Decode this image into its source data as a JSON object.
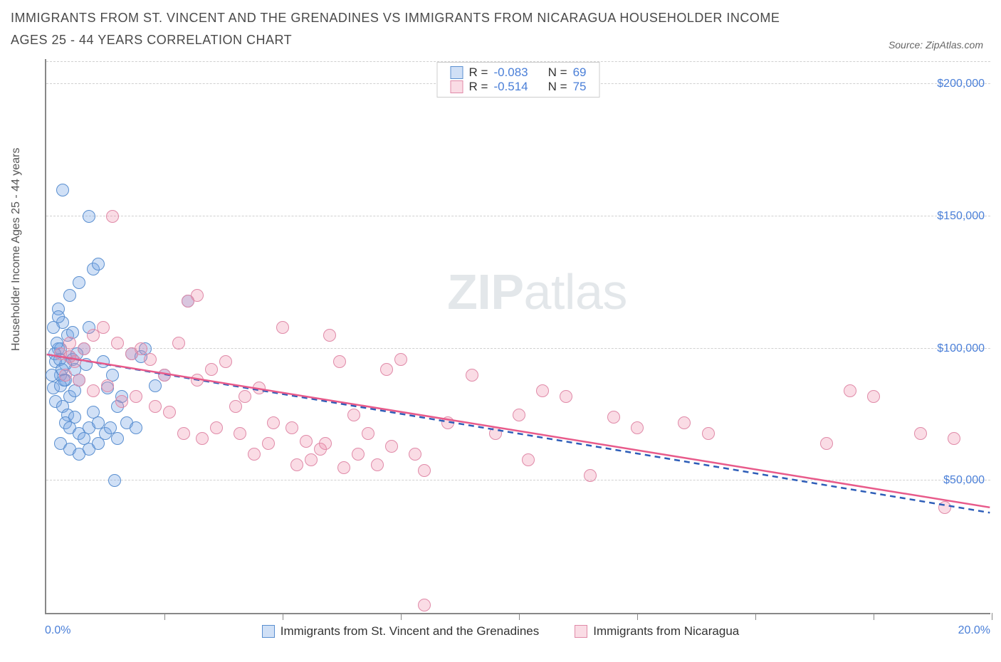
{
  "title": "IMMIGRANTS FROM ST. VINCENT AND THE GRENADINES VS IMMIGRANTS FROM NICARAGUA HOUSEHOLDER INCOME AGES 25 - 44 YEARS CORRELATION CHART",
  "source_label": "Source:",
  "source_name": "ZipAtlas.com",
  "watermark_bold": "ZIP",
  "watermark_light": "atlas",
  "chart": {
    "type": "scatter",
    "background_color": "#ffffff",
    "grid_color": "#d0d0d0",
    "axis_color": "#888888",
    "label_color": "#4a7fd8",
    "label_fontsize": 16,
    "yaxis_title": "Householder Income Ages 25 - 44 years",
    "xlim": [
      0,
      20
    ],
    "ylim": [
      0,
      210000
    ],
    "ygrid": [
      50000,
      100000,
      150000,
      200000
    ],
    "ylabels": [
      "$50,000",
      "$100,000",
      "$150,000",
      "$200,000"
    ],
    "xticks": [
      2.5,
      5,
      7.5,
      10,
      12.5,
      15,
      17.5,
      20
    ],
    "xlab_left": "0.0%",
    "xlab_right": "20.0%",
    "marker_radius": 9,
    "marker_border_width": 1.5,
    "series": [
      {
        "name": "Immigrants from St. Vincent and the Grenadines",
        "color_fill": "rgba(120,165,230,0.35)",
        "color_stroke": "#5a8fd0",
        "R": "-0.083",
        "N": "69",
        "line_color": "#2d5db8",
        "line_dashed": true,
        "line": {
          "y1": 98000,
          "y2": 38000
        },
        "points": [
          [
            0.35,
            160000
          ],
          [
            0.2,
            95000
          ],
          [
            0.25,
            100000
          ],
          [
            0.3,
            90000
          ],
          [
            0.15,
            85000
          ],
          [
            0.4,
            88000
          ],
          [
            0.45,
            105000
          ],
          [
            0.5,
            97000
          ],
          [
            0.3,
            100000
          ],
          [
            0.35,
            110000
          ],
          [
            0.25,
            115000
          ],
          [
            0.5,
            120000
          ],
          [
            0.7,
            125000
          ],
          [
            0.9,
            150000
          ],
          [
            0.55,
            96000
          ],
          [
            0.6,
            92000
          ],
          [
            0.4,
            94000
          ],
          [
            0.3,
            86000
          ],
          [
            0.2,
            80000
          ],
          [
            0.35,
            78000
          ],
          [
            0.45,
            75000
          ],
          [
            0.5,
            82000
          ],
          [
            0.6,
            84000
          ],
          [
            0.7,
            88000
          ],
          [
            0.8,
            100000
          ],
          [
            0.9,
            108000
          ],
          [
            1.0,
            130000
          ],
          [
            1.1,
            132000
          ],
          [
            1.2,
            95000
          ],
          [
            1.3,
            85000
          ],
          [
            1.4,
            90000
          ],
          [
            1.5,
            78000
          ],
          [
            1.6,
            82000
          ],
          [
            1.8,
            98000
          ],
          [
            2.0,
            97000
          ],
          [
            2.1,
            100000
          ],
          [
            2.3,
            86000
          ],
          [
            0.4,
            72000
          ],
          [
            0.5,
            70000
          ],
          [
            0.6,
            74000
          ],
          [
            0.7,
            68000
          ],
          [
            0.8,
            66000
          ],
          [
            0.9,
            70000
          ],
          [
            1.0,
            76000
          ],
          [
            1.1,
            72000
          ],
          [
            1.25,
            68000
          ],
          [
            1.35,
            70000
          ],
          [
            1.5,
            66000
          ],
          [
            1.7,
            72000
          ],
          [
            1.9,
            70000
          ],
          [
            0.3,
            64000
          ],
          [
            0.5,
            62000
          ],
          [
            0.7,
            60000
          ],
          [
            0.9,
            62000
          ],
          [
            1.1,
            64000
          ],
          [
            1.45,
            50000
          ],
          [
            0.15,
            108000
          ],
          [
            0.25,
            112000
          ],
          [
            0.18,
            98000
          ],
          [
            0.22,
            102000
          ],
          [
            0.28,
            96000
          ],
          [
            0.33,
            92000
          ],
          [
            0.38,
            88000
          ],
          [
            0.12,
            90000
          ],
          [
            0.55,
            106000
          ],
          [
            0.65,
            98000
          ],
          [
            0.85,
            94000
          ],
          [
            2.5,
            90000
          ],
          [
            3.0,
            118000
          ]
        ]
      },
      {
        "name": "Immigrants from Nicaragua",
        "color_fill": "rgba(240,140,170,0.30)",
        "color_stroke": "#e08aa8",
        "R": "-0.514",
        "N": "75",
        "line_color": "#e85a8a",
        "line_dashed": false,
        "line": {
          "y1": 98000,
          "y2": 40000
        },
        "points": [
          [
            1.4,
            150000
          ],
          [
            0.5,
            97000
          ],
          [
            0.6,
            95000
          ],
          [
            0.8,
            100000
          ],
          [
            1.0,
            105000
          ],
          [
            1.2,
            108000
          ],
          [
            1.5,
            102000
          ],
          [
            1.8,
            98000
          ],
          [
            2.0,
            100000
          ],
          [
            2.2,
            96000
          ],
          [
            2.5,
            90000
          ],
          [
            2.8,
            102000
          ],
          [
            3.0,
            118000
          ],
          [
            3.2,
            88000
          ],
          [
            3.5,
            92000
          ],
          [
            3.8,
            95000
          ],
          [
            4.0,
            78000
          ],
          [
            4.2,
            82000
          ],
          [
            4.5,
            85000
          ],
          [
            4.8,
            72000
          ],
          [
            5.0,
            108000
          ],
          [
            5.2,
            70000
          ],
          [
            5.5,
            65000
          ],
          [
            5.8,
            62000
          ],
          [
            6.0,
            105000
          ],
          [
            6.2,
            95000
          ],
          [
            6.5,
            75000
          ],
          [
            6.8,
            68000
          ],
          [
            7.0,
            56000
          ],
          [
            7.2,
            92000
          ],
          [
            7.5,
            96000
          ],
          [
            7.8,
            60000
          ],
          [
            8.0,
            54000
          ],
          [
            8.5,
            72000
          ],
          [
            9.0,
            90000
          ],
          [
            9.5,
            68000
          ],
          [
            10.0,
            75000
          ],
          [
            10.2,
            58000
          ],
          [
            10.5,
            84000
          ],
          [
            11.0,
            82000
          ],
          [
            11.5,
            52000
          ],
          [
            12.0,
            74000
          ],
          [
            12.5,
            70000
          ],
          [
            13.5,
            72000
          ],
          [
            14.0,
            68000
          ],
          [
            16.5,
            64000
          ],
          [
            17.0,
            84000
          ],
          [
            18.5,
            68000
          ],
          [
            19.2,
            66000
          ],
          [
            19.0,
            40000
          ],
          [
            3.2,
            120000
          ],
          [
            0.4,
            90000
          ],
          [
            0.7,
            88000
          ],
          [
            1.0,
            84000
          ],
          [
            1.3,
            86000
          ],
          [
            1.6,
            80000
          ],
          [
            1.9,
            82000
          ],
          [
            2.3,
            78000
          ],
          [
            2.6,
            76000
          ],
          [
            2.9,
            68000
          ],
          [
            3.3,
            66000
          ],
          [
            3.6,
            70000
          ],
          [
            4.1,
            68000
          ],
          [
            4.4,
            60000
          ],
          [
            4.7,
            64000
          ],
          [
            5.3,
            56000
          ],
          [
            5.6,
            58000
          ],
          [
            5.9,
            64000
          ],
          [
            6.3,
            55000
          ],
          [
            6.6,
            60000
          ],
          [
            7.3,
            63000
          ],
          [
            8.0,
            3000
          ],
          [
            0.3,
            98000
          ],
          [
            0.5,
            102000
          ],
          [
            17.5,
            82000
          ]
        ]
      }
    ]
  }
}
